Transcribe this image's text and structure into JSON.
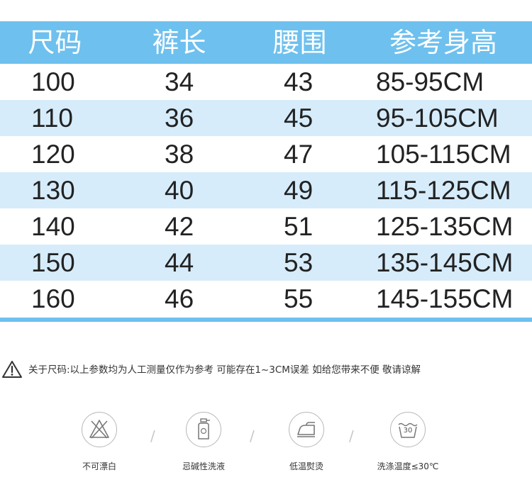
{
  "table": {
    "headers": [
      "尺码",
      "裤长",
      "腰围",
      "参考身高"
    ],
    "rows": [
      [
        "100",
        "34",
        "43",
        "85-95CM"
      ],
      [
        "110",
        "36",
        "45",
        "95-105CM"
      ],
      [
        "120",
        "38",
        "47",
        "105-115CM"
      ],
      [
        "130",
        "40",
        "49",
        "115-125CM"
      ],
      [
        "140",
        "42",
        "51",
        "125-135CM"
      ],
      [
        "150",
        "44",
        "53",
        "135-145CM"
      ],
      [
        "160",
        "46",
        "55",
        "145-155CM"
      ]
    ]
  },
  "notice": {
    "icon": "warning-triangle-icon",
    "text": "关于尺码:以上参数均为人工测量仅作为参考 可能存在1~3CM误差 如给您带来不便 敬请谅解"
  },
  "care": [
    {
      "icon": "no-bleach-icon",
      "label": "不可漂白"
    },
    {
      "icon": "no-alkali-detergent-icon",
      "label": "忌碱性洗液"
    },
    {
      "icon": "low-temp-iron-icon",
      "label": "低温熨烫"
    },
    {
      "icon": "wash-30-icon",
      "label": "洗涤温度≤30℃",
      "symbol_text": "30"
    }
  ],
  "colors": {
    "header_bg": "#6ec0ee",
    "row_shade": "#d6ecfb",
    "text": "#222222"
  }
}
